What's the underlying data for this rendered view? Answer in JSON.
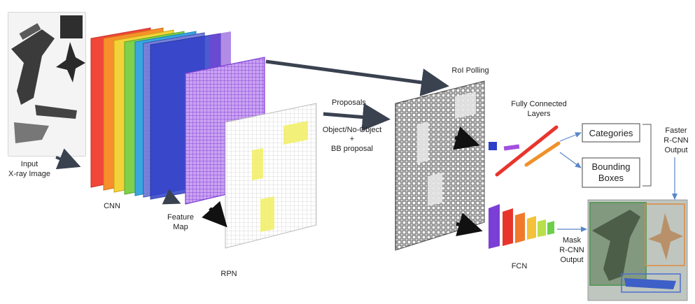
{
  "labels": {
    "input_line1": "Input",
    "input_line2": "X-ray Image",
    "cnn": "CNN",
    "feature_line1": "Feature",
    "feature_line2": "Map",
    "rpn": "RPN",
    "proposals": "Proposals",
    "objectness": "Object/No-Object",
    "plus": "+",
    "bb_proposal": "BB proposal",
    "roi": "RoI Polling",
    "fc_line1": "Fully Connected",
    "fc_line2": "Layers",
    "categories": "Categories",
    "bbox_line1": "Bounding",
    "bbox_line2": "Boxes",
    "faster_line1": "Faster",
    "faster_line2": "R-CNN",
    "faster_line3": "Output",
    "fcn": "FCN",
    "mask_line1": "Mask",
    "mask_line2": "R-CNN",
    "mask_line3": "Output"
  },
  "colors": {
    "cnn_layers": [
      "#f0473a",
      "#f7902c",
      "#f4d23a",
      "#7fd04a",
      "#3aa6e0",
      "#2f3fc8",
      "#7b3fd6"
    ],
    "feature_map": "#9b55e0",
    "rpn_grid": "#d8d8d8",
    "rpn_highlight": "#f2f06a",
    "roi_grid": "#555555",
    "arrow_dark": "#3a4250",
    "arrow_blue": "#5a86c9",
    "fcn_layers": [
      "#7b3fd6",
      "#e8352c",
      "#f07a2a",
      "#f4c23a",
      "#b8e04a",
      "#6ccf4a"
    ],
    "fc_line_red": "#e8352c",
    "fc_line_orange": "#f0902a",
    "fc_small_blue": "#2f3fc8",
    "fc_small_purple": "#a24fe0"
  }
}
